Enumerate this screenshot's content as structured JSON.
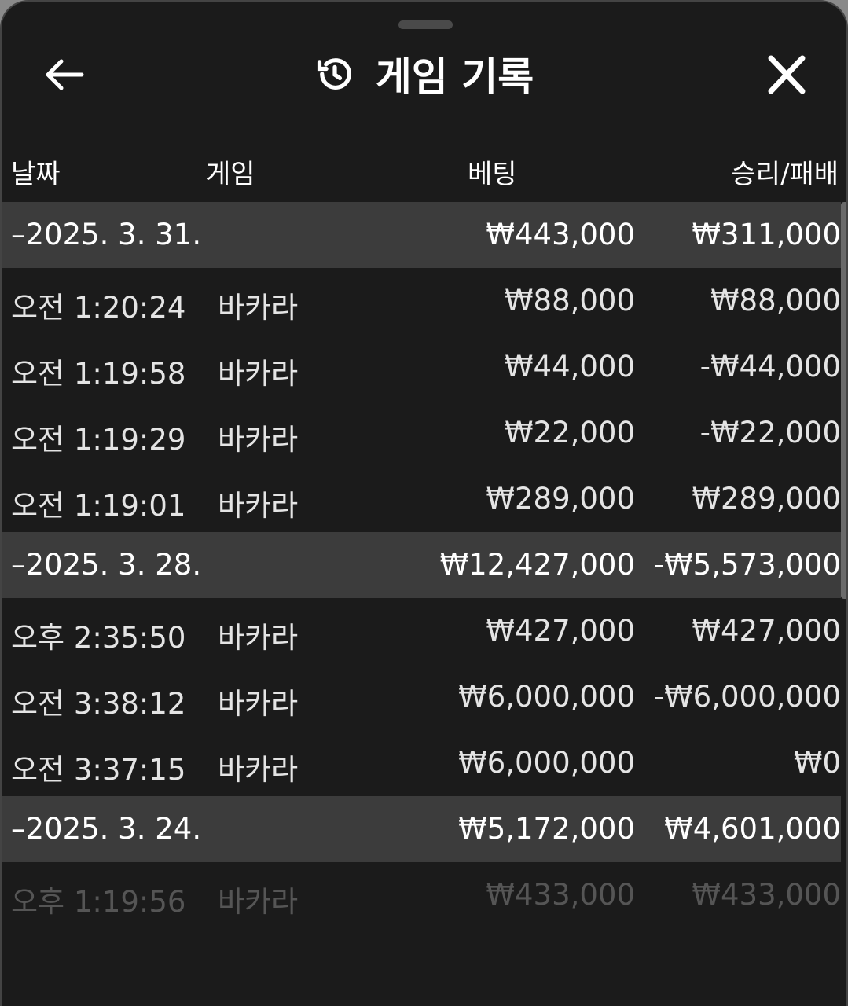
{
  "header": {
    "title": "게임 기록",
    "history_icon": "history-icon",
    "back_icon": "arrow-left-icon",
    "close_icon": "close-icon"
  },
  "columns": {
    "date": "날짜",
    "game": "게임",
    "bet": "베팅",
    "result": "승리/패배"
  },
  "groups": [
    {
      "date": "–2025. 3. 31.",
      "bet": "₩443,000",
      "result": "₩311,000",
      "items": [
        {
          "time": "오전 1:20:24",
          "game": "바카라",
          "bet": "₩88,000",
          "result": "₩88,000"
        },
        {
          "time": "오전 1:19:58",
          "game": "바카라",
          "bet": "₩44,000",
          "result": "-₩44,000"
        },
        {
          "time": "오전 1:19:29",
          "game": "바카라",
          "bet": "₩22,000",
          "result": "-₩22,000"
        },
        {
          "time": "오전 1:19:01",
          "game": "바카라",
          "bet": "₩289,000",
          "result": "₩289,000"
        }
      ]
    },
    {
      "date": "–2025. 3. 28.",
      "bet": "₩12,427,000",
      "result": "-₩5,573,000",
      "items": [
        {
          "time": "오후 2:35:50",
          "game": "바카라",
          "bet": "₩427,000",
          "result": "₩427,000"
        },
        {
          "time": "오전 3:38:12",
          "game": "바카라",
          "bet": "₩6,000,000",
          "result": "-₩6,000,000"
        },
        {
          "time": "오전 3:37:15",
          "game": "바카라",
          "bet": "₩6,000,000",
          "result": "₩0"
        }
      ]
    },
    {
      "date": "–2025. 3. 24.",
      "bet": "₩5,172,000",
      "result": "₩4,601,000",
      "items": [
        {
          "time": "오후 1:19:56",
          "game": "바카라",
          "bet": "₩433,000",
          "result": "₩433,000"
        }
      ]
    }
  ]
}
